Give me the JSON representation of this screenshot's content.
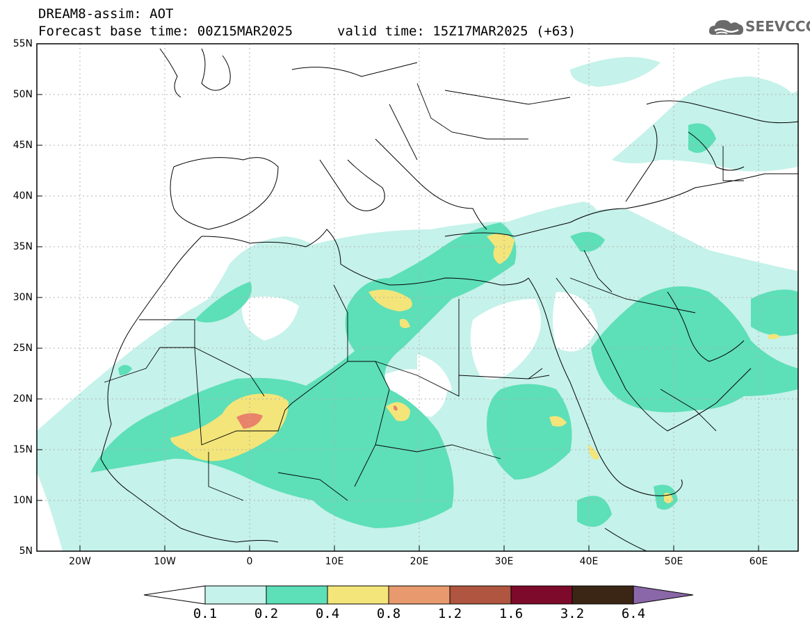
{
  "header": {
    "title": "DREAM8-assim: AOT",
    "base_time": "Forecast base time: 00Z15MAR2025",
    "valid_time": "valid time: 15Z17MAR2025 (+63)"
  },
  "logo": {
    "text": "SEEVCCC",
    "color": "#6a6a6a"
  },
  "map": {
    "lon_range": [
      -25,
      65
    ],
    "lat_range": [
      5,
      55
    ],
    "lat_ticks": [
      "55N",
      "50N",
      "45N",
      "40N",
      "35N",
      "30N",
      "25N",
      "20N",
      "15N",
      "10N",
      "5N"
    ],
    "lon_ticks": [
      "20W",
      "10W",
      "0",
      "10E",
      "20E",
      "30E",
      "40E",
      "50E",
      "60E"
    ],
    "grid": "dotted"
  },
  "colorbar": {
    "labels": [
      "0.1",
      "0.2",
      "0.4",
      "0.8",
      "1.2",
      "1.6",
      "3.2",
      "6.4"
    ],
    "colors": [
      "#c5f2ea",
      "#5ddfb8",
      "#f3e57a",
      "#e89a6e",
      "#b0553f",
      "#7d0a2a",
      "#3b2615",
      "#8a67a8"
    ],
    "under_color": "#ffffff"
  }
}
